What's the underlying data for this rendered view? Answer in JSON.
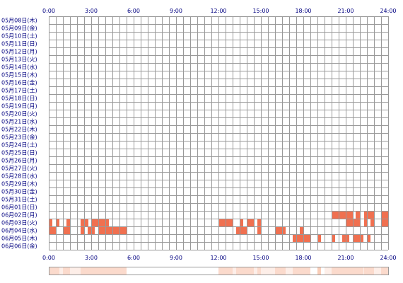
{
  "colors": {
    "grid": "#999999",
    "block": "#f07050",
    "overview_dim": "#fbe3d8",
    "overview_bright": "#f9cdb8",
    "overview_frame": "#999999",
    "label": "#000080"
  },
  "chart_data": {
    "type": "heatmap",
    "x_ticks": [
      "0:00",
      "3:00",
      "6:00",
      "9:00",
      "12:00",
      "15:00",
      "18:00",
      "21:00",
      "24:00"
    ],
    "x_range_hours": [
      0,
      24
    ],
    "grid_step_hours": 0.5,
    "rows": [
      "05月08日(木)",
      "05月09日(金)",
      "05月10日(土)",
      "05月11日(日)",
      "05月12日(月)",
      "05月13日(火)",
      "05月14日(水)",
      "05月15日(木)",
      "05月16日(金)",
      "05月17日(土)",
      "05月18日(日)",
      "05月19日(月)",
      "05月20日(火)",
      "05月21日(水)",
      "05月22日(木)",
      "05月23日(金)",
      "05月24日(土)",
      "05月25日(日)",
      "05月26日(月)",
      "05月27日(火)",
      "05月28日(水)",
      "05月29日(木)",
      "05月30日(金)",
      "05月31日(土)",
      "06月01日(日)",
      "06月02日(月)",
      "06月03日(火)",
      "06月04日(水)",
      "06月05日(木)",
      "06月06日(金)"
    ],
    "intervals": [
      {
        "row": 25,
        "start": 20.0,
        "end": 21.5
      },
      {
        "row": 25,
        "start": 21.7,
        "end": 22.0
      },
      {
        "row": 25,
        "start": 22.3,
        "end": 23.0
      },
      {
        "row": 25,
        "start": 23.5,
        "end": 24.0
      },
      {
        "row": 26,
        "start": 0.0,
        "end": 0.25
      },
      {
        "row": 26,
        "start": 0.5,
        "end": 0.75
      },
      {
        "row": 26,
        "start": 1.25,
        "end": 1.5
      },
      {
        "row": 26,
        "start": 2.25,
        "end": 2.8
      },
      {
        "row": 26,
        "start": 3.0,
        "end": 4.25
      },
      {
        "row": 26,
        "start": 12.0,
        "end": 13.0
      },
      {
        "row": 26,
        "start": 13.5,
        "end": 13.75
      },
      {
        "row": 26,
        "start": 14.0,
        "end": 14.5
      },
      {
        "row": 26,
        "start": 14.75,
        "end": 15.0
      },
      {
        "row": 26,
        "start": 21.0,
        "end": 22.0
      },
      {
        "row": 26,
        "start": 22.3,
        "end": 22.5
      },
      {
        "row": 26,
        "start": 22.75,
        "end": 23.0
      },
      {
        "row": 26,
        "start": 23.5,
        "end": 24.0
      },
      {
        "row": 27,
        "start": 0.0,
        "end": 0.5
      },
      {
        "row": 27,
        "start": 1.0,
        "end": 1.5
      },
      {
        "row": 27,
        "start": 2.25,
        "end": 2.5
      },
      {
        "row": 27,
        "start": 2.75,
        "end": 3.25
      },
      {
        "row": 27,
        "start": 3.5,
        "end": 5.5
      },
      {
        "row": 27,
        "start": 13.25,
        "end": 14.0
      },
      {
        "row": 27,
        "start": 14.75,
        "end": 15.0
      },
      {
        "row": 27,
        "start": 16.0,
        "end": 16.75
      },
      {
        "row": 27,
        "start": 17.75,
        "end": 18.0
      },
      {
        "row": 28,
        "start": 17.25,
        "end": 18.5
      },
      {
        "row": 28,
        "start": 19.0,
        "end": 19.25
      },
      {
        "row": 28,
        "start": 20.0,
        "end": 20.25
      },
      {
        "row": 28,
        "start": 20.75,
        "end": 21.25
      },
      {
        "row": 28,
        "start": 21.5,
        "end": 22.25
      },
      {
        "row": 28,
        "start": 22.5,
        "end": 22.75
      }
    ]
  }
}
